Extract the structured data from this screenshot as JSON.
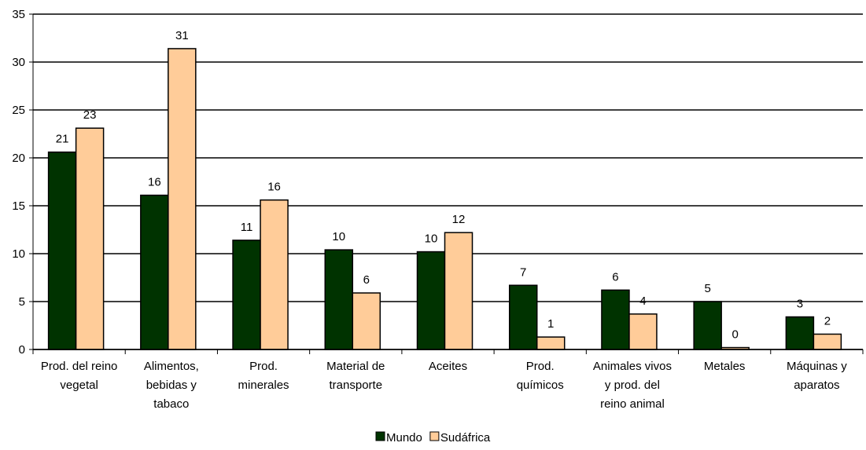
{
  "chart_data": {
    "type": "bar",
    "categories": [
      [
        "Prod. del reino",
        "vegetal"
      ],
      [
        "Alimentos,",
        "bebidas y",
        "tabaco"
      ],
      [
        "Prod.",
        "minerales"
      ],
      [
        "Material de",
        "transporte"
      ],
      [
        "Aceites"
      ],
      [
        "Prod.",
        "químicos"
      ],
      [
        "Animales vivos",
        "y prod. del",
        "reino animal"
      ],
      [
        "Metales"
      ],
      [
        "Máquinas y",
        "aparatos"
      ]
    ],
    "series": [
      {
        "name": "Mundo",
        "color": "#003300",
        "values": [
          20.6,
          16.1,
          11.4,
          10.4,
          10.2,
          6.7,
          6.2,
          5.0,
          3.4
        ],
        "value_labels": [
          "21",
          "16",
          "11",
          "10",
          "10",
          "7",
          "6",
          "5",
          "3"
        ]
      },
      {
        "name": "Sudáfrica",
        "color": "#ffcc99",
        "values": [
          23.1,
          31.4,
          15.6,
          5.9,
          12.2,
          1.3,
          3.7,
          0.2,
          1.6
        ],
        "value_labels": [
          "23",
          "31",
          "16",
          "6",
          "12",
          "1",
          "4",
          "0",
          "2"
        ]
      }
    ],
    "ylim": [
      0,
      35
    ],
    "yticks": [
      0,
      5,
      10,
      15,
      20,
      25,
      30,
      35
    ],
    "grid": true,
    "legend": "bottom"
  }
}
